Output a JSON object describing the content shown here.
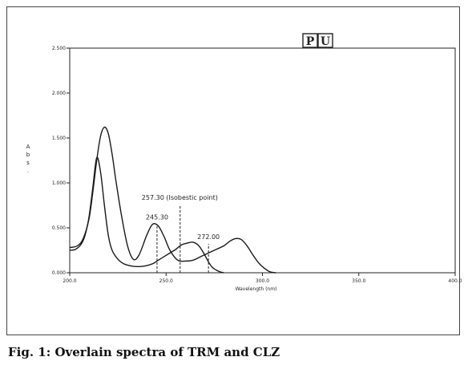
{
  "chart_data": {
    "type": "line",
    "title": "",
    "xlabel": "Wavelength (nm)",
    "ylabel": "A b s .",
    "xlim": [
      200.0,
      400.0
    ],
    "ylim": [
      0.0,
      2.5
    ],
    "x_ticks": [
      "200.0",
      "250.0",
      "300.0",
      "350.0",
      "400.0"
    ],
    "y_ticks": [
      "0.000",
      "0.500",
      "1.000",
      "1.500",
      "2.000",
      "2.500"
    ],
    "grid": false,
    "legend_box": "[P][U]",
    "series": [
      {
        "x": [
          200,
          203,
          206,
          208,
          210,
          212,
          214,
          216,
          218,
          220,
          222,
          225,
          228,
          231,
          234,
          237,
          240,
          243,
          246,
          249,
          252,
          255,
          258,
          261,
          264,
          267,
          270,
          272,
          274,
          276,
          278,
          280
        ],
        "y": [
          0.25,
          0.26,
          0.32,
          0.42,
          0.62,
          0.95,
          1.28,
          1.12,
          0.75,
          0.42,
          0.25,
          0.15,
          0.1,
          0.08,
          0.07,
          0.07,
          0.08,
          0.1,
          0.14,
          0.18,
          0.22,
          0.26,
          0.31,
          0.33,
          0.34,
          0.3,
          0.2,
          0.12,
          0.06,
          0.03,
          0.01,
          0.0
        ]
      },
      {
        "x": [
          200,
          204,
          207,
          210,
          212,
          214,
          216,
          218,
          220,
          222,
          224,
          227,
          230,
          233,
          236,
          240,
          243,
          246,
          249,
          252,
          256,
          260,
          264,
          268,
          272,
          276,
          280,
          283,
          286,
          289,
          292,
          295,
          298,
          301,
          304,
          307
        ],
        "y": [
          0.28,
          0.3,
          0.38,
          0.6,
          0.9,
          1.25,
          1.52,
          1.62,
          1.55,
          1.32,
          1.02,
          0.62,
          0.3,
          0.15,
          0.2,
          0.42,
          0.54,
          0.52,
          0.4,
          0.25,
          0.14,
          0.13,
          0.14,
          0.18,
          0.22,
          0.26,
          0.3,
          0.35,
          0.38,
          0.37,
          0.3,
          0.2,
          0.11,
          0.05,
          0.01,
          0.0
        ]
      }
    ],
    "annotations": [
      {
        "x": 245.3,
        "label": "245.30",
        "marker_top_y": 0.54
      },
      {
        "x": 257.3,
        "label": "257.30  (Isobestic point)",
        "marker_top_y": 0.75
      },
      {
        "x": 272.0,
        "label": "272.00",
        "marker_top_y": 0.32
      }
    ]
  },
  "caption": {
    "text": "Fig. 1: Overlain spectra of TRM and CLZ"
  }
}
